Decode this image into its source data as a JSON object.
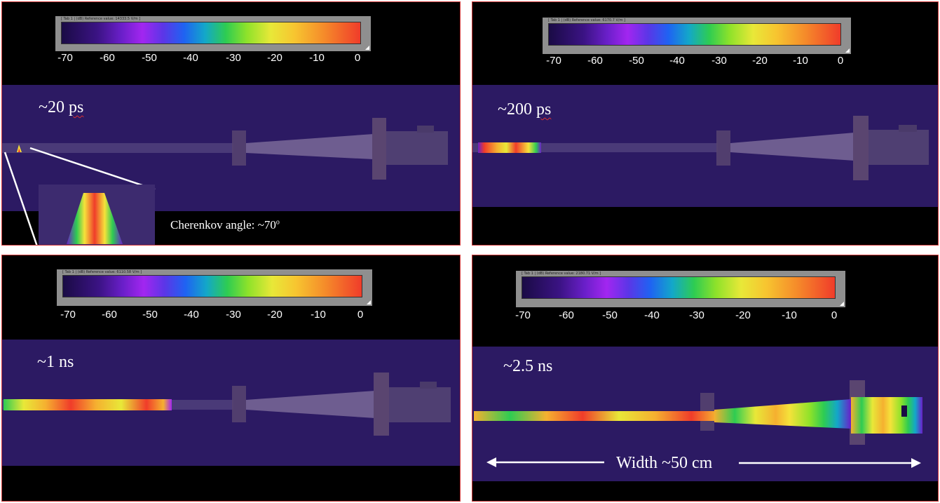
{
  "colorbar": {
    "ticks": [
      "-70",
      "-60",
      "-50",
      "-40",
      "-30",
      "-20",
      "-10",
      "0"
    ],
    "gradient_colors": [
      "#1a0b45",
      "#6a1fc9",
      "#a226f0",
      "#1f63f2",
      "#2ecc52",
      "#e8e838",
      "#f58a2a",
      "#f03c2a"
    ]
  },
  "panels": {
    "top_left": {
      "time": "~20 ps",
      "cherenkov_label": "Cherenkov angle: ~70",
      "cherenkov_sup": "o"
    },
    "top_right": {
      "time": "~200 ps"
    },
    "bottom_left": {
      "time": "~1 ns"
    },
    "bottom_right": {
      "time": "~2.5 ns",
      "width_label": "Width ~50 cm"
    }
  },
  "colors": {
    "frame_border": "#d23a3a",
    "background_band": "#2c1a63",
    "panel_bg": "#000000"
  }
}
